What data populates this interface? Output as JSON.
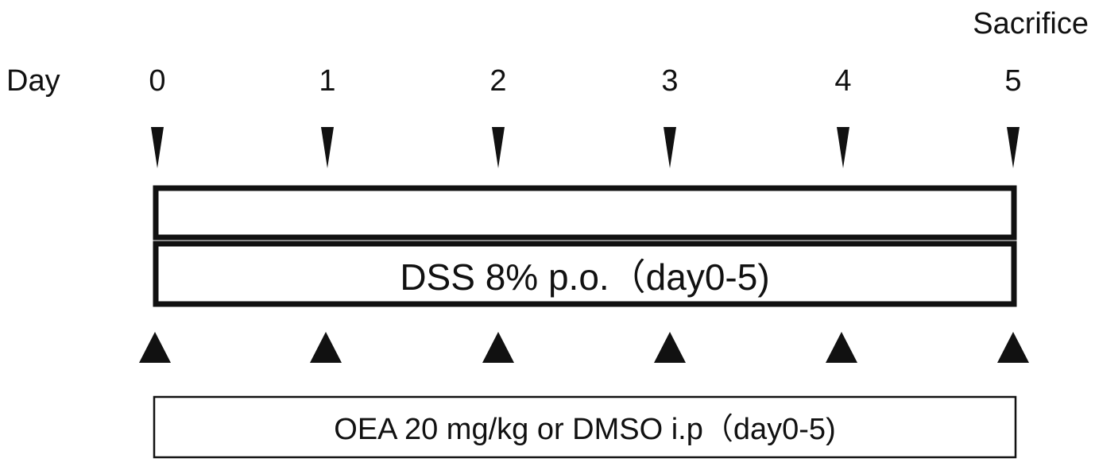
{
  "header": {
    "end_label": "Sacrifice",
    "axis_label": "Day"
  },
  "days": [
    "0",
    "1",
    "2",
    "3",
    "4",
    "5"
  ],
  "bars": {
    "dss_label": "DSS 8% p.o.（day0-5)",
    "oea_label": "OEA 20 mg/kg or DMSO i.p（day0-5)"
  },
  "markers": {
    "top_icon": "thin-down-pointer-icon",
    "bottom_icon": "solid-up-triangle-icon",
    "count": 6,
    "color": "#111111"
  }
}
